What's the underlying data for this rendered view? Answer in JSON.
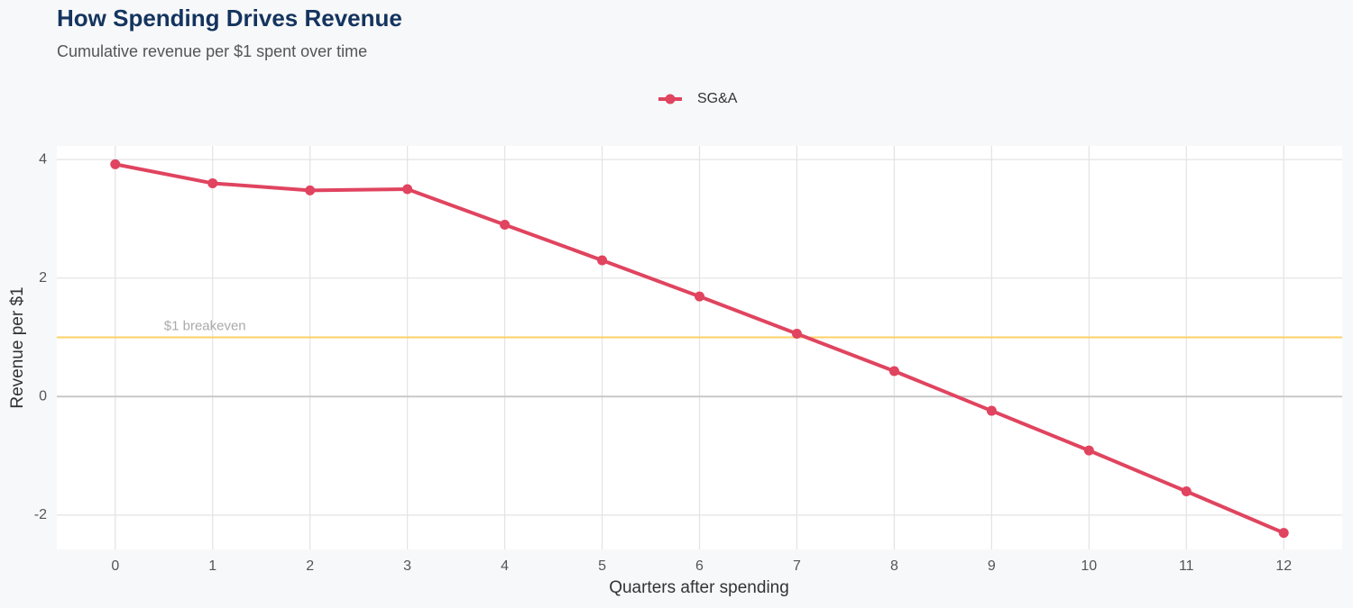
{
  "chart_data": {
    "type": "line",
    "title": "How Spending Drives Revenue",
    "subtitle": "Cumulative revenue per $1 spent over time",
    "x_label": "Quarters after spending",
    "y_label": "Revenue per $1",
    "x": [
      0,
      1,
      2,
      3,
      4,
      5,
      6,
      7,
      8,
      9,
      10,
      11,
      12
    ],
    "series": [
      {
        "name": "SG&A",
        "color": "#e0445f",
        "values": [
          3.92,
          3.6,
          3.48,
          3.5,
          2.9,
          2.3,
          1.69,
          1.06,
          0.43,
          -0.24,
          -0.91,
          -1.6,
          -2.3
        ]
      }
    ],
    "xlim": [
      -0.6,
      12.6
    ],
    "xticks": [
      0,
      1,
      2,
      3,
      4,
      5,
      6,
      7,
      8,
      9,
      10,
      11,
      12
    ],
    "ylim": [
      -2.58,
      4.23
    ],
    "yticks": [
      -2,
      0,
      2,
      4
    ],
    "grid": true,
    "legend": "top",
    "reference_lines": [
      {
        "value": 1,
        "label": "$1 breakeven",
        "color": "#ffd166"
      }
    ]
  }
}
